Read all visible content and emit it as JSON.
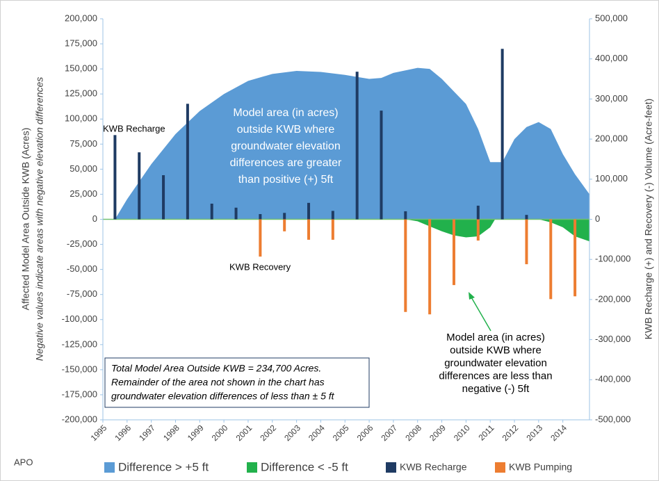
{
  "chart_data": {
    "type": "area_bar",
    "xlim": [
      1995,
      2015.1
    ],
    "xticks": [
      1995,
      1996,
      1997,
      1998,
      1999,
      2000,
      2001,
      2002,
      2003,
      2004,
      2005,
      2006,
      2007,
      2008,
      2009,
      2010,
      2011,
      2012,
      2013,
      2014
    ],
    "ylim": [
      -200000,
      200000
    ],
    "yticks": [
      {
        "value": -200000,
        "label": "-200,000"
      },
      {
        "value": -175000,
        "label": "-175,000"
      },
      {
        "value": -150000,
        "label": "-150,000"
      },
      {
        "value": -125000,
        "label": "-125,000"
      },
      {
        "value": -100000,
        "label": "-100,000"
      },
      {
        "value": -75000,
        "label": "-75,000"
      },
      {
        "value": -50000,
        "label": "-50,000"
      },
      {
        "value": -25000,
        "label": "-25,000"
      },
      0,
      {
        "value": 25000,
        "label": "25,000"
      },
      {
        "value": 50000,
        "label": "50,000"
      },
      {
        "value": 75000,
        "label": "75,000"
      },
      {
        "value": 100000,
        "label": "100,000"
      },
      {
        "value": 125000,
        "label": "125,000"
      },
      {
        "value": 150000,
        "label": "150,000"
      },
      {
        "value": 175000,
        "label": "175,000"
      },
      {
        "value": 200000,
        "label": "200,000"
      }
    ],
    "y2lim": [
      -500000,
      500000
    ],
    "y2ticks": [
      {
        "value": -500000,
        "label": "-500,000"
      },
      {
        "value": -400000,
        "label": "-400,000"
      },
      {
        "value": -300000,
        "label": "-300,000"
      },
      {
        "value": -200000,
        "label": "-200,000"
      },
      {
        "value": -100000,
        "label": "-100,000"
      },
      0,
      {
        "value": 100000,
        "label": "100,000"
      },
      {
        "value": 200000,
        "label": "200,000"
      },
      {
        "value": 300000,
        "label": "300,000"
      },
      {
        "value": 400000,
        "label": "400,000"
      },
      {
        "value": 500000,
        "label": "500,000"
      }
    ],
    "ylabel": "Affected Model Area Outside KWB (Acres)",
    "ylabel_sub": "Negative values indicate areas with negative elevation  differences",
    "y2label": "KWB Recharge (+) and Recovery (-) Volume  (Acre-feet)",
    "series": [
      {
        "name": "Difference > +5 ft",
        "type": "area",
        "color": "#5b9bd5",
        "x": [
          1995.5,
          1996,
          1997,
          1998,
          1999,
          2000,
          2001,
          2002,
          2003,
          2004,
          2005,
          2006,
          2006.5,
          2007,
          2008,
          2008.5,
          2009,
          2010,
          2010.5,
          2011,
          2011.5,
          2012,
          2012.5,
          2013,
          2013.5,
          2014,
          2014.5,
          2015.1
        ],
        "values": [
          0,
          20000,
          55000,
          85000,
          108000,
          125000,
          138000,
          145000,
          148000,
          147000,
          144000,
          140000,
          141000,
          146000,
          151000,
          150000,
          140000,
          115000,
          90000,
          57000,
          57000,
          80000,
          92000,
          97000,
          90000,
          65000,
          45000,
          25000
        ]
      },
      {
        "name": "Difference < -5 ft",
        "type": "area",
        "color": "#22b14c",
        "x": [
          1995,
          2007.5,
          2008,
          2008.5,
          2009,
          2009.5,
          2010,
          2010.5,
          2011,
          2011.2,
          2013,
          2013.5,
          2014,
          2014.5,
          2015.1
        ],
        "values": [
          0,
          0,
          -2000,
          -7000,
          -12000,
          -16000,
          -18000,
          -17000,
          -8000,
          0,
          0,
          -3000,
          -8000,
          -17000,
          -22000
        ]
      },
      {
        "name": "KWB Recharge",
        "type": "bar",
        "axis": "y2",
        "color": "#1f3b63",
        "x": [
          1995.5,
          1996.5,
          1997.5,
          1998.5,
          1999.5,
          2000.5,
          2001.5,
          2002.5,
          2003.5,
          2004.5,
          2005.5,
          2006.5,
          2007.5,
          2010.5,
          2011.5,
          2012.5
        ],
        "values": [
          210000,
          167000,
          110000,
          288000,
          39000,
          29000,
          13000,
          16000,
          41000,
          21000,
          368000,
          271000,
          20000,
          34000,
          425000,
          11000
        ]
      },
      {
        "name": "KWB Pumping",
        "type": "bar",
        "axis": "y2",
        "color": "#ed7d31",
        "x": [
          2001.5,
          2002.5,
          2003.5,
          2004.5,
          2007.5,
          2008.5,
          2009.5,
          2010.5,
          2012.5,
          2013.5,
          2014.5
        ],
        "values": [
          -93000,
          -30000,
          -51000,
          -51000,
          -231000,
          -237000,
          -164000,
          -53000,
          -112000,
          -199000,
          -192000
        ]
      }
    ],
    "annotations": {
      "recharge": "KWB Recharge",
      "recovery": "KWB Recovery",
      "positive": [
        "Model area (in acres)",
        "outside KWB where",
        "groundwater elevation",
        "differences are greater",
        "than positive (+) 5ft"
      ],
      "negative": [
        "Model area (in acres)",
        "outside KWB where",
        "groundwater elevation",
        "differences are less than",
        "negative (-) 5ft"
      ],
      "note": [
        "Total Model Area Outside KWB = 234,700 Acres.",
        "Remainder of the area not shown in the chart has",
        "groundwater elevation differences of less than ± 5 ft"
      ]
    },
    "footer": "APO"
  }
}
